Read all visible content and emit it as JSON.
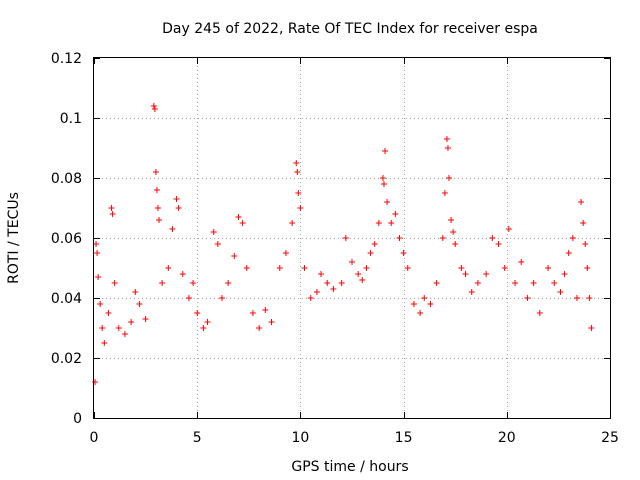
{
  "chart_data": {
    "type": "scatter",
    "title": "Day 245 of 2022, Rate Of TEC Index for receiver espa",
    "xlabel": "GPS time / hours",
    "ylabel": "ROTI / TECUs",
    "xlim": [
      0,
      25
    ],
    "ylim": [
      0,
      0.12
    ],
    "xticks": [
      0,
      5,
      10,
      15,
      20,
      25
    ],
    "xtick_labels": [
      "0",
      "5",
      "10",
      "15",
      "20",
      "25"
    ],
    "yticks": [
      0,
      0.02,
      0.04,
      0.06,
      0.08,
      0.1,
      0.12
    ],
    "ytick_labels": [
      "0",
      "0.02",
      "0.04",
      "0.06",
      "0.08",
      "0.1",
      "0.12"
    ],
    "grid": true,
    "marker": "plus",
    "color": "#ff0000",
    "series": [
      {
        "points": [
          [
            0.05,
            0.012
          ],
          [
            0.1,
            0.058
          ],
          [
            0.15,
            0.055
          ],
          [
            0.2,
            0.047
          ],
          [
            0.3,
            0.038
          ],
          [
            0.4,
            0.03
          ],
          [
            0.5,
            0.025
          ],
          [
            0.7,
            0.035
          ],
          [
            0.85,
            0.07
          ],
          [
            0.9,
            0.068
          ],
          [
            1.0,
            0.045
          ],
          [
            1.2,
            0.03
          ],
          [
            1.5,
            0.028
          ],
          [
            1.8,
            0.032
          ],
          [
            2.0,
            0.042
          ],
          [
            2.2,
            0.038
          ],
          [
            2.5,
            0.033
          ],
          [
            2.9,
            0.104
          ],
          [
            2.95,
            0.103
          ],
          [
            3.0,
            0.082
          ],
          [
            3.05,
            0.076
          ],
          [
            3.1,
            0.07
          ],
          [
            3.15,
            0.066
          ],
          [
            3.3,
            0.045
          ],
          [
            3.6,
            0.05
          ],
          [
            3.8,
            0.063
          ],
          [
            4.0,
            0.073
          ],
          [
            4.1,
            0.07
          ],
          [
            4.3,
            0.048
          ],
          [
            4.6,
            0.04
          ],
          [
            4.8,
            0.045
          ],
          [
            5.0,
            0.035
          ],
          [
            5.3,
            0.03
          ],
          [
            5.5,
            0.032
          ],
          [
            5.8,
            0.062
          ],
          [
            6.0,
            0.058
          ],
          [
            6.2,
            0.04
          ],
          [
            6.5,
            0.045
          ],
          [
            6.8,
            0.054
          ],
          [
            7.0,
            0.067
          ],
          [
            7.2,
            0.065
          ],
          [
            7.4,
            0.05
          ],
          [
            7.7,
            0.035
          ],
          [
            8.0,
            0.03
          ],
          [
            8.3,
            0.036
          ],
          [
            8.6,
            0.032
          ],
          [
            9.0,
            0.05
          ],
          [
            9.3,
            0.055
          ],
          [
            9.6,
            0.065
          ],
          [
            9.8,
            0.085
          ],
          [
            9.85,
            0.082
          ],
          [
            9.9,
            0.075
          ],
          [
            10.0,
            0.07
          ],
          [
            10.2,
            0.05
          ],
          [
            10.5,
            0.04
          ],
          [
            10.8,
            0.042
          ],
          [
            11.0,
            0.048
          ],
          [
            11.3,
            0.045
          ],
          [
            11.6,
            0.043
          ],
          [
            12.0,
            0.045
          ],
          [
            12.2,
            0.06
          ],
          [
            12.5,
            0.052
          ],
          [
            12.8,
            0.048
          ],
          [
            13.0,
            0.046
          ],
          [
            13.2,
            0.05
          ],
          [
            13.4,
            0.055
          ],
          [
            13.6,
            0.058
          ],
          [
            13.8,
            0.065
          ],
          [
            14.0,
            0.08
          ],
          [
            14.05,
            0.078
          ],
          [
            14.1,
            0.089
          ],
          [
            14.2,
            0.072
          ],
          [
            14.4,
            0.065
          ],
          [
            14.6,
            0.068
          ],
          [
            14.8,
            0.06
          ],
          [
            15.0,
            0.055
          ],
          [
            15.2,
            0.05
          ],
          [
            15.5,
            0.038
          ],
          [
            15.8,
            0.035
          ],
          [
            16.0,
            0.04
          ],
          [
            16.3,
            0.038
          ],
          [
            16.6,
            0.045
          ],
          [
            16.9,
            0.06
          ],
          [
            17.0,
            0.075
          ],
          [
            17.1,
            0.093
          ],
          [
            17.15,
            0.09
          ],
          [
            17.2,
            0.08
          ],
          [
            17.3,
            0.066
          ],
          [
            17.4,
            0.062
          ],
          [
            17.5,
            0.058
          ],
          [
            17.8,
            0.05
          ],
          [
            18.0,
            0.048
          ],
          [
            18.3,
            0.042
          ],
          [
            18.6,
            0.045
          ],
          [
            19.0,
            0.048
          ],
          [
            19.3,
            0.06
          ],
          [
            19.6,
            0.058
          ],
          [
            19.9,
            0.05
          ],
          [
            20.1,
            0.063
          ],
          [
            20.4,
            0.045
          ],
          [
            20.7,
            0.052
          ],
          [
            21.0,
            0.04
          ],
          [
            21.3,
            0.045
          ],
          [
            21.6,
            0.035
          ],
          [
            22.0,
            0.05
          ],
          [
            22.3,
            0.045
          ],
          [
            22.6,
            0.042
          ],
          [
            22.8,
            0.048
          ],
          [
            23.0,
            0.055
          ],
          [
            23.2,
            0.06
          ],
          [
            23.4,
            0.04
          ],
          [
            23.6,
            0.072
          ],
          [
            23.7,
            0.065
          ],
          [
            23.8,
            0.058
          ],
          [
            23.9,
            0.05
          ],
          [
            24.0,
            0.04
          ],
          [
            24.1,
            0.03
          ]
        ]
      }
    ]
  },
  "colors": {
    "marker": "#ff0000",
    "grid": "#a0a0a0",
    "axis": "#000000"
  }
}
